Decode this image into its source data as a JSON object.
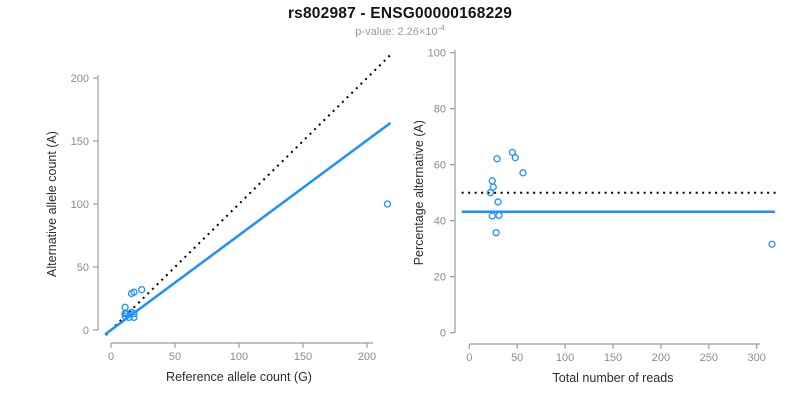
{
  "header": {
    "title": "rs802987 - ENSG00000168229",
    "pvalue_prefix": "p-value: 2.26×10",
    "pvalue_exponent": "-4"
  },
  "colors": {
    "accent_blue": "#1E90FF",
    "line_black": "#000000",
    "axis_gray": "#9b9b9b",
    "tick_label_gray": "#8c8c8c",
    "axis_label_dark": "#2e2e2e"
  },
  "chart_data": [
    {
      "type": "scatter",
      "name": "allele-count-scatter",
      "xlabel": "Reference allele count (G)",
      "ylabel": "Alternative allele count (A)",
      "xticks": [
        0,
        50,
        100,
        150,
        200
      ],
      "yticks": [
        0,
        50,
        100,
        150,
        200
      ],
      "xlim": [
        -5,
        220
      ],
      "ylim": [
        -5,
        220
      ],
      "grid": false,
      "points": [
        [
          11,
          18
        ],
        [
          16,
          29
        ],
        [
          18,
          30
        ],
        [
          24,
          32
        ],
        [
          11,
          13
        ],
        [
          11,
          11
        ],
        [
          12,
          13
        ],
        [
          16,
          14
        ],
        [
          14,
          10
        ],
        [
          18,
          13
        ],
        [
          18,
          10
        ],
        [
          216,
          100
        ]
      ],
      "lines": [
        {
          "name": "identity-line",
          "style": "dotted",
          "color": "#000000",
          "x1": -4,
          "y1": -4,
          "x2": 218,
          "y2": 218
        },
        {
          "name": "fit-line",
          "style": "solid",
          "color": "#1E90FF",
          "x1": -4.7,
          "y1": -3.6,
          "x2": 218.3,
          "y2": 164.3
        }
      ]
    },
    {
      "type": "scatter",
      "name": "percentage-scatter",
      "xlabel": "Total number of reads",
      "ylabel": "Percentage alternative (A)",
      "xticks": [
        0,
        50,
        100,
        150,
        200,
        250,
        300
      ],
      "yticks": [
        0,
        20,
        40,
        60,
        80,
        100
      ],
      "xlim": [
        -8,
        322
      ],
      "ylim": [
        0,
        100
      ],
      "grid": false,
      "points": [
        [
          29,
          62.1
        ],
        [
          45,
          64.4
        ],
        [
          48,
          62.5
        ],
        [
          56,
          57.1
        ],
        [
          24,
          54.2
        ],
        [
          22,
          50.0
        ],
        [
          25,
          52.0
        ],
        [
          30,
          46.7
        ],
        [
          24,
          41.7
        ],
        [
          31,
          41.9
        ],
        [
          28,
          35.7
        ],
        [
          316,
          31.6
        ]
      ],
      "lines": [
        {
          "name": "expected-50pct-line",
          "style": "dotted",
          "color": "#000000",
          "x1": -8,
          "y1": 50,
          "x2": 322,
          "y2": 50
        },
        {
          "name": "observed-mean-line",
          "style": "solid",
          "color": "#1E90FF",
          "x1": -8,
          "y1": 43.2,
          "x2": 319,
          "y2": 43.2
        }
      ]
    }
  ]
}
